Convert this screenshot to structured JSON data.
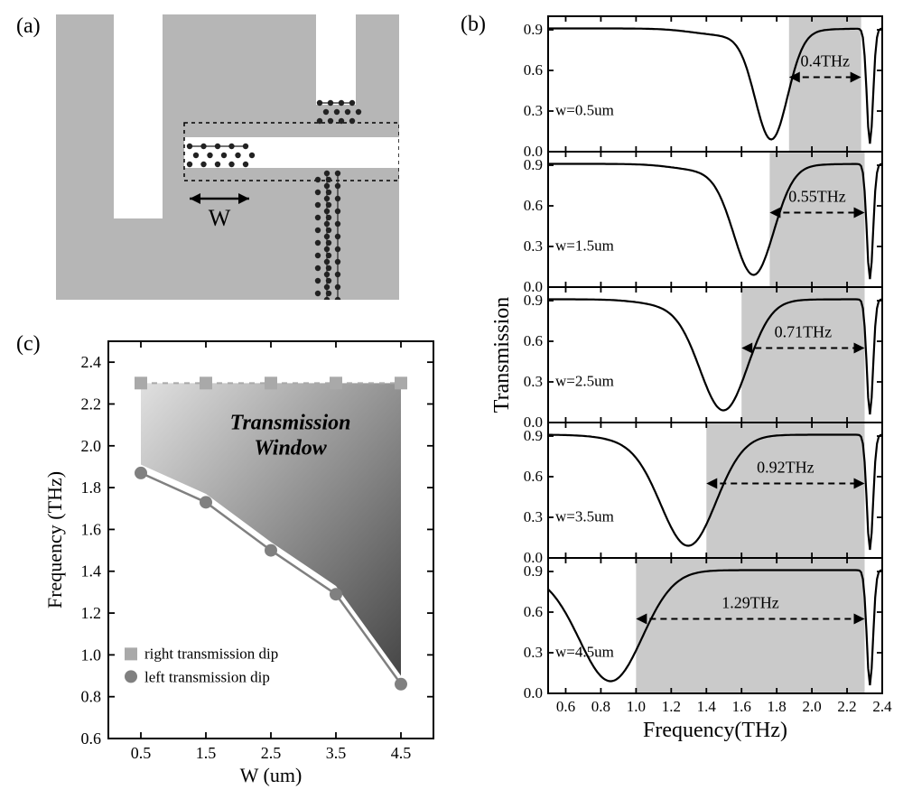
{
  "labels": {
    "a": "(a)",
    "b": "(b)",
    "c": "(c)"
  },
  "panelA": {
    "bg": "#b6b6b6",
    "wLabel": "W",
    "arrowColor": "#000"
  },
  "panelB": {
    "xlabel": "Frequency(THz)",
    "ylabel": "Transmission",
    "shade": "#cacaca",
    "lineColor": "#000",
    "lineWidth": 2.2,
    "subplots": [
      {
        "wText": "w=0.5um",
        "bwText": "0.4THz",
        "shadeX": [
          1.87,
          2.28
        ],
        "dipX": 1.77
      },
      {
        "wText": "w=1.5um",
        "bwText": "0.55THz",
        "shadeX": [
          1.76,
          2.3
        ],
        "dipX": 1.67
      },
      {
        "wText": "w=2.5um",
        "bwText": "0.71THz",
        "shadeX": [
          1.6,
          2.3
        ],
        "dipX": 1.5
      },
      {
        "wText": "w=3.5um",
        "bwText": "0.92THz",
        "shadeX": [
          1.4,
          2.3
        ],
        "dipX": 1.3
      },
      {
        "wText": "w=4.5um",
        "bwText": "1.29THz",
        "shadeX": [
          1.0,
          2.3
        ],
        "dipX": 0.86
      }
    ],
    "xTicks": [
      0.6,
      0.8,
      1.0,
      1.2,
      1.4,
      1.6,
      1.8,
      2.0,
      2.2,
      2.4
    ],
    "yTicks": [
      0.0,
      0.3,
      0.6,
      0.9
    ],
    "xlim": [
      0.5,
      2.4
    ],
    "ylim": [
      0.0,
      1.0
    ]
  },
  "panelC": {
    "xlabel": "W (um)",
    "ylabel": "Frequency (THz)",
    "title": "Transmission\nWindow",
    "legend": {
      "sq": "right transmission dip",
      "ci": "left  transmission dip",
      "sqColor": "#a9a9a9",
      "ciColor": "#808080"
    },
    "xTicks": [
      0.5,
      1.5,
      2.5,
      3.5,
      4.5
    ],
    "yTicks": [
      0.6,
      0.8,
      1.0,
      1.2,
      1.4,
      1.6,
      1.8,
      2.0,
      2.2,
      2.4
    ],
    "xlim": [
      0.0,
      5.0
    ],
    "ylim": [
      0.6,
      2.5
    ],
    "right": {
      "x": [
        0.5,
        1.5,
        2.5,
        3.5,
        4.5
      ],
      "y": [
        2.3,
        2.3,
        2.3,
        2.3,
        2.3
      ],
      "color": "#a9a9a9"
    },
    "left": {
      "x": [
        0.5,
        1.5,
        2.5,
        3.5,
        4.5
      ],
      "y": [
        1.87,
        1.73,
        1.5,
        1.29,
        0.86
      ],
      "color": "#808080"
    },
    "gradLight": "#e0e0e0",
    "gradDark": "#444"
  }
}
